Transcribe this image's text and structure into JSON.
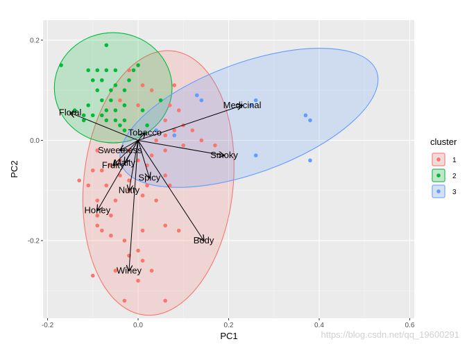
{
  "chart_data": {
    "type": "scatter",
    "subtype": "pca-biplot-with-cluster-ellipses",
    "xlabel": "PC1",
    "ylabel": "PC2",
    "xlim": [
      -0.21,
      0.61
    ],
    "ylim": [
      -0.355,
      0.24
    ],
    "x_ticks": [
      -0.2,
      0.0,
      0.2,
      0.4,
      0.6
    ],
    "x_tick_labels": [
      "-0.2",
      "0.0",
      "0.2",
      "0.4",
      "0.6"
    ],
    "y_ticks": [
      -0.2,
      0.0,
      0.2
    ],
    "y_tick_labels": [
      "-0.2",
      "0.0",
      "0.2"
    ],
    "grid": true,
    "panel_background": "#ebebeb",
    "legend": {
      "title": "cluster",
      "position": "right",
      "entries": [
        {
          "label": "1",
          "color": "#F8766D"
        },
        {
          "label": "2",
          "color": "#00BA38"
        },
        {
          "label": "3",
          "color": "#619CFF"
        }
      ]
    },
    "series": [
      {
        "name": "1",
        "color": "#F8766D",
        "points": [
          [
            -0.02,
            0.14
          ],
          [
            0.0,
            0.15
          ],
          [
            -0.04,
            0.08
          ],
          [
            0.01,
            0.11
          ],
          [
            0.03,
            0.1
          ],
          [
            0.05,
            0.08
          ],
          [
            0.07,
            0.07
          ],
          [
            0.09,
            0.06
          ],
          [
            0.06,
            0.04
          ],
          [
            0.08,
            0.02
          ],
          [
            0.1,
            0.03
          ],
          [
            0.12,
            0.02
          ],
          [
            0.06,
            0.01
          ],
          [
            0.04,
            0.0
          ],
          [
            0.1,
            -0.01
          ],
          [
            0.14,
            0.0
          ],
          [
            0.17,
            -0.01
          ],
          [
            0.06,
            -0.02
          ],
          [
            0.03,
            -0.03
          ],
          [
            0.0,
            -0.04
          ],
          [
            -0.02,
            -0.02
          ],
          [
            -0.04,
            -0.04
          ],
          [
            -0.06,
            -0.05
          ],
          [
            -0.09,
            -0.02
          ],
          [
            -0.08,
            -0.06
          ],
          [
            -0.1,
            -0.06
          ],
          [
            -0.13,
            -0.08
          ],
          [
            -0.11,
            -0.09
          ],
          [
            -0.07,
            -0.09
          ],
          [
            -0.04,
            -0.07
          ],
          [
            -0.02,
            -0.08
          ],
          [
            0.02,
            -0.09
          ],
          [
            0.06,
            -0.07
          ],
          [
            0.07,
            -0.09
          ],
          [
            0.04,
            -0.12
          ],
          [
            0.01,
            -0.11
          ],
          [
            -0.02,
            -0.1
          ],
          [
            -0.05,
            -0.12
          ],
          [
            -0.09,
            -0.12
          ],
          [
            -0.06,
            -0.15
          ],
          [
            -0.09,
            -0.15
          ],
          [
            -0.09,
            -0.17
          ],
          [
            -0.08,
            -0.18
          ],
          [
            -0.06,
            -0.19
          ],
          [
            -0.03,
            -0.2
          ],
          [
            -0.02,
            -0.23
          ],
          [
            0.0,
            -0.22
          ],
          [
            0.01,
            -0.18
          ],
          [
            0.06,
            -0.17
          ],
          [
            0.09,
            -0.18
          ],
          [
            0.03,
            -0.26
          ],
          [
            0.0,
            -0.28
          ],
          [
            -0.05,
            -0.26
          ],
          [
            -0.1,
            -0.27
          ],
          [
            -0.03,
            -0.32
          ],
          [
            0.06,
            -0.32
          ],
          [
            0.01,
            -0.24
          ],
          [
            0.02,
            -0.05
          ],
          [
            0.08,
            0.11
          ],
          [
            0.0,
            0.07
          ]
        ]
      },
      {
        "name": "2",
        "color": "#00BA38",
        "points": [
          [
            -0.07,
            0.19
          ],
          [
            -0.17,
            0.15
          ],
          [
            -0.11,
            0.14
          ],
          [
            -0.09,
            0.14
          ],
          [
            -0.07,
            0.14
          ],
          [
            -0.05,
            0.14
          ],
          [
            -0.02,
            0.12
          ],
          [
            -0.1,
            0.12
          ],
          [
            -0.08,
            0.12
          ],
          [
            -0.09,
            0.1
          ],
          [
            -0.05,
            0.11
          ],
          [
            -0.06,
            0.1
          ],
          [
            -0.03,
            0.1
          ],
          [
            -0.01,
            0.14
          ],
          [
            0.0,
            0.15
          ],
          [
            -0.08,
            0.08
          ],
          [
            -0.06,
            0.08
          ],
          [
            -0.03,
            0.07
          ],
          [
            -0.05,
            0.06
          ],
          [
            -0.07,
            0.06
          ],
          [
            -0.11,
            0.07
          ],
          [
            -0.14,
            0.06
          ],
          [
            -0.12,
            0.05
          ],
          [
            -0.1,
            0.05
          ],
          [
            -0.08,
            0.05
          ],
          [
            -0.05,
            0.04
          ],
          [
            -0.03,
            0.04
          ],
          [
            -0.07,
            0.04
          ],
          [
            -0.04,
            0.03
          ],
          [
            -0.03,
            0.02
          ],
          [
            -0.12,
            0.04
          ],
          [
            0.01,
            0.06
          ],
          [
            0.05,
            0.08
          ],
          [
            0.02,
            0.03
          ]
        ]
      },
      {
        "name": "3",
        "color": "#619CFF",
        "points": [
          [
            0.13,
            0.09
          ],
          [
            0.14,
            0.08
          ],
          [
            0.26,
            0.08
          ],
          [
            0.25,
            0.07
          ],
          [
            0.37,
            0.05
          ],
          [
            0.38,
            0.04
          ],
          [
            0.26,
            -0.03
          ],
          [
            0.38,
            -0.04
          ],
          [
            0.04,
            0.02
          ],
          [
            0.08,
            0.01
          ]
        ]
      }
    ],
    "ellipses": [
      {
        "cluster": "1",
        "cx": 0.045,
        "cy": -0.085,
        "rx": 0.165,
        "ry": 0.265,
        "angle_deg": 6
      },
      {
        "cluster": "2",
        "cx": -0.055,
        "cy": 0.105,
        "rx": 0.13,
        "ry": 0.11,
        "angle_deg": 0
      },
      {
        "cluster": "3",
        "cx": 0.245,
        "cy": 0.045,
        "rx": 0.3,
        "ry": 0.11,
        "angle_deg": -20
      }
    ],
    "loadings": [
      {
        "name": "Tobacco",
        "x": 0.015,
        "y": 0.015
      },
      {
        "name": "Medicinal",
        "x": 0.23,
        "y": 0.07
      },
      {
        "name": "Smoky",
        "x": 0.19,
        "y": -0.03
      },
      {
        "name": "Floral",
        "x": -0.15,
        "y": 0.055
      },
      {
        "name": "Sweetness",
        "x": -0.04,
        "y": -0.02
      },
      {
        "name": "Malty",
        "x": -0.03,
        "y": -0.045
      },
      {
        "name": "Fruity",
        "x": -0.055,
        "y": -0.05
      },
      {
        "name": "Spicy",
        "x": 0.025,
        "y": -0.075
      },
      {
        "name": "Nutty",
        "x": -0.02,
        "y": -0.1
      },
      {
        "name": "Honey",
        "x": -0.09,
        "y": -0.14
      },
      {
        "name": "Body",
        "x": 0.145,
        "y": -0.2
      },
      {
        "name": "Winey",
        "x": -0.02,
        "y": -0.26
      }
    ]
  },
  "watermark": "https://blog.csdn.net/qq_19600291"
}
